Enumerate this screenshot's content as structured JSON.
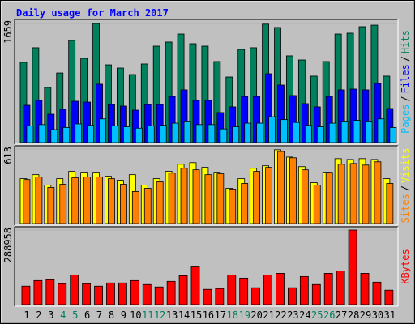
{
  "chart_data": {
    "type": "bar",
    "title": "Daily usage for March 2017",
    "categories": [
      "1",
      "2",
      "3",
      "4",
      "5",
      "6",
      "7",
      "8",
      "9",
      "10",
      "11",
      "12",
      "13",
      "14",
      "15",
      "16",
      "17",
      "18",
      "19",
      "20",
      "21",
      "22",
      "23",
      "24",
      "25",
      "26",
      "27",
      "28",
      "29",
      "30",
      "31"
    ],
    "highlight_indices": [
      3,
      4,
      10,
      11,
      17,
      18,
      24,
      25
    ],
    "highlight_color": "#00805c",
    "panels": [
      {
        "ylim": [
          0,
          1659
        ],
        "yticks": [
          1659
        ],
        "legend_separator": "/",
        "series": [
          {
            "name": "Pages",
            "color": "#00c0ff",
            "values": [
              230,
              250,
              180,
              210,
              260,
              240,
              330,
              230,
              220,
              200,
              230,
              240,
              270,
              300,
              250,
              250,
              190,
              220,
              270,
              270,
              360,
              320,
              280,
              240,
              220,
              270,
              300,
              310,
              300,
              330,
              210
            ]
          },
          {
            "name": "Files",
            "color": "#0000ff",
            "values": [
              519,
              587,
              395,
              463,
              576,
              564,
              813,
              530,
              508,
              451,
              530,
              530,
              643,
              734,
              587,
              587,
              418,
              497,
              643,
              643,
              959,
              801,
              655,
              542,
              497,
              643,
              734,
              745,
              734,
              824,
              474
            ]
          },
          {
            "name": "Hits",
            "color": "#00805c",
            "values": [
              1118,
              1321,
              768,
              970,
              1422,
              1174,
              1659,
              1083,
              1038,
              948,
              1095,
              1343,
              1400,
              1512,
              1377,
              1343,
              1129,
              914,
              1298,
              1321,
              1650,
              1603,
              1208,
              1151,
              926,
              1129,
              1512,
              1524,
              1614,
              1636,
              926
            ]
          }
        ]
      },
      {
        "ylim": [
          0,
          613
        ],
        "yticks": [
          613
        ],
        "legend_separator": "/",
        "series": [
          {
            "name": "Sites",
            "color": "#ff8000",
            "values": [
              362,
              383,
              297,
              323,
              376,
              383,
              383,
              369,
              323,
              264,
              290,
              343,
              415,
              455,
              442,
              402,
              409,
              284,
              330,
              429,
              462,
              593,
              541,
              442,
              316,
              422,
              488,
              494,
              481,
              508,
              330
            ]
          },
          {
            "name": "Visits",
            "color": "#ffff00",
            "values": [
              369,
              402,
              316,
              369,
              429,
              422,
              422,
              389,
              356,
              402,
              316,
              369,
              429,
              488,
              501,
              462,
              422,
              290,
              369,
              455,
              475,
              607,
              547,
              468,
              336,
              422,
              534,
              527,
              534,
              527,
              369
            ]
          }
        ]
      },
      {
        "ylim": [
          0,
          288958
        ],
        "yticks": [
          288958
        ],
        "series": [
          {
            "name": "KBytes",
            "color": "#ff0000",
            "values": [
              71500,
              93200,
              96300,
              80800,
              115000,
              80800,
              71500,
              83900,
              83900,
              93200,
              77700,
              68400,
              90100,
              111900,
              146000,
              59000,
              62100,
              115000,
              102500,
              65300,
              115000,
              121200,
              65300,
              108800,
              77700,
              121200,
              130500,
              288958,
              121200,
              87000,
              55900
            ]
          }
        ]
      }
    ]
  }
}
